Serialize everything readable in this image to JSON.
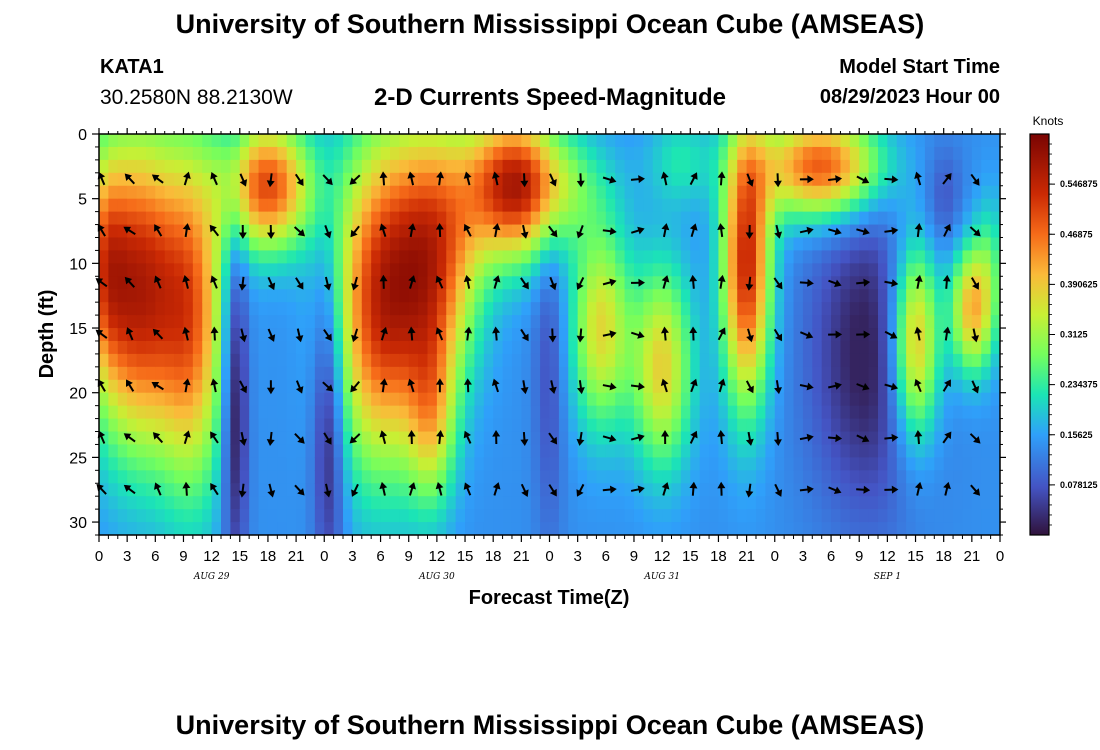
{
  "header": {
    "title": "University of Southern Mississippi Ocean Cube (AMSEAS)",
    "station_id": "KATA1",
    "station_coords": "30.2580N  88.2130W",
    "model_start_label": "Model Start Time",
    "model_start_value": "08/29/2023 Hour 00"
  },
  "footer": {
    "title": "University of Southern Mississippi Ocean Cube (AMSEAS)"
  },
  "chart_data": {
    "type": "heatmap",
    "title": "2-D Currents Speed-Magnitude",
    "xlabel": "Forecast Time(Z)",
    "ylabel": "Depth (ft)",
    "x_range_hours": [
      0,
      96
    ],
    "ylim": [
      0,
      31
    ],
    "x_tick_labels": [
      "0",
      "3",
      "6",
      "9",
      "12",
      "15",
      "18",
      "21",
      "0",
      "3",
      "6",
      "9",
      "12",
      "15",
      "18",
      "21",
      "0",
      "3",
      "6",
      "9",
      "12",
      "15",
      "18",
      "21",
      "0",
      "3",
      "6",
      "9",
      "12",
      "15",
      "18",
      "21",
      "0"
    ],
    "date_labels": [
      {
        "hour": 12,
        "label": "AUG 29"
      },
      {
        "hour": 36,
        "label": "AUG 30"
      },
      {
        "hour": 60,
        "label": "AUG 31"
      },
      {
        "hour": 84,
        "label": "SEP 1"
      }
    ],
    "y_ticks": [
      0,
      5,
      10,
      15,
      20,
      25,
      30
    ],
    "colorbar": {
      "title": "Knots",
      "tick_labels": [
        "0.546875",
        "0.46875",
        "0.390625",
        "0.3125",
        "0.234375",
        "0.15625",
        "0.078125"
      ],
      "range": [
        0,
        0.625
      ]
    },
    "arrow_depths_ft": [
      3.5,
      7.5,
      11.5,
      15.5,
      19.5,
      23.5,
      27.5
    ],
    "arrow_hours_step": 3,
    "speed_field_description": "Current speed magnitude (knots) by forecast hour and depth; high speeds (~0.55 kt) near surface Aug 29-30, low speeds (~0.05 kt) at depth Sep 1."
  }
}
